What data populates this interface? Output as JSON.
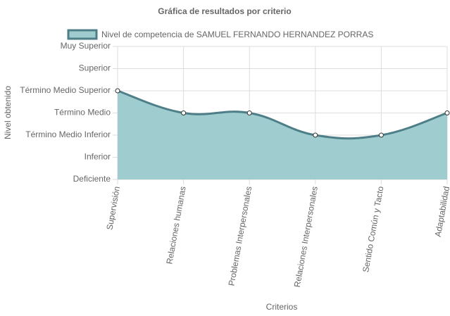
{
  "chart_data": {
    "type": "line",
    "title": "Gráfica de resultados por criterio",
    "x_label": "Criterios",
    "y_label": "Nivel obtenido",
    "categories": [
      "Supervisión",
      "Relaciones humanas",
      "Problemas Interpersonales",
      "Relaciones Interpersonales",
      "Sentido Común y Tacto",
      "Adaptabilidad"
    ],
    "series": [
      {
        "name": "Nivel de competencia de SAMUEL FERNANDO HERNANDEZ PORRAS",
        "color": "#4e7f88",
        "fill": "#9fcdcf",
        "values": [
          4,
          3,
          3,
          2,
          2,
          3
        ]
      }
    ],
    "ylim": [
      0,
      6
    ],
    "yticks": [
      {
        "value": 0,
        "label": "Deficiente"
      },
      {
        "value": 1,
        "label": "Inferior"
      },
      {
        "value": 2,
        "label": "Término Medio Inferior"
      },
      {
        "value": 3,
        "label": "Término Medio"
      },
      {
        "value": 4,
        "label": "Término Medio Superior"
      },
      {
        "value": 5,
        "label": "Superior"
      },
      {
        "value": 6,
        "label": "Muy Superior"
      }
    ],
    "grid": true,
    "legend": "top"
  }
}
